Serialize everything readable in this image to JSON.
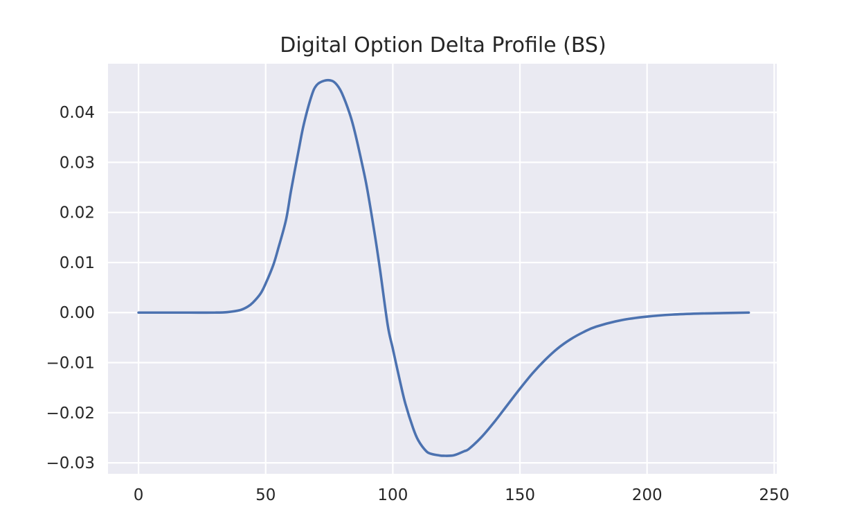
{
  "chart_data": {
    "type": "line",
    "title": "Digital Option Delta Profile (BS)",
    "xlabel": "",
    "ylabel": "",
    "xlim": [
      -12,
      251
    ],
    "ylim": [
      -0.0322,
      0.0497
    ],
    "x_ticks": [
      0,
      50,
      100,
      150,
      200,
      250
    ],
    "x_tick_labels": [
      "0",
      "50",
      "100",
      "150",
      "200",
      "250"
    ],
    "y_ticks": [
      0.04,
      0.03,
      0.02,
      0.01,
      0.0,
      -0.01,
      -0.02,
      -0.03
    ],
    "y_tick_labels": [
      "0.04",
      "0.03",
      "0.02",
      "0.01",
      "0.00",
      "−0.01",
      "−0.02",
      "−0.03"
    ],
    "grid": true,
    "background_color": "#eaeaf2",
    "series": [
      {
        "color": "#4c72b0",
        "x": [
          0,
          10,
          20,
          30,
          35,
          40,
          43,
          45,
          48,
          50,
          53,
          55,
          58,
          60,
          63,
          65,
          68,
          70,
          73,
          76,
          78,
          80,
          83,
          85,
          88,
          90,
          93,
          95,
          98,
          100,
          103,
          105,
          108,
          110,
          113,
          115,
          118,
          120,
          124,
          128,
          130,
          135,
          140,
          145,
          150,
          155,
          160,
          165,
          170,
          175,
          180,
          190,
          200,
          210,
          220,
          230,
          240
        ],
        "values": [
          0.0,
          0.0,
          0.0,
          0.0,
          0.0001,
          0.0005,
          0.0012,
          0.002,
          0.0038,
          0.0058,
          0.0095,
          0.0129,
          0.0185,
          0.0244,
          0.0325,
          0.0376,
          0.0432,
          0.0454,
          0.0463,
          0.0463,
          0.0455,
          0.0438,
          0.0398,
          0.0362,
          0.0295,
          0.0245,
          0.0153,
          0.0085,
          -0.0025,
          -0.0072,
          -0.0141,
          -0.0183,
          -0.0231,
          -0.0255,
          -0.0276,
          -0.0282,
          -0.0285,
          -0.0286,
          -0.0285,
          -0.0277,
          -0.0272,
          -0.0248,
          -0.0218,
          -0.0185,
          -0.0152,
          -0.0121,
          -0.0094,
          -0.0071,
          -0.0053,
          -0.0039,
          -0.0028,
          -0.0015,
          -0.0008,
          -0.0004,
          -0.0002,
          -0.0001,
          0.0
        ]
      }
    ]
  }
}
